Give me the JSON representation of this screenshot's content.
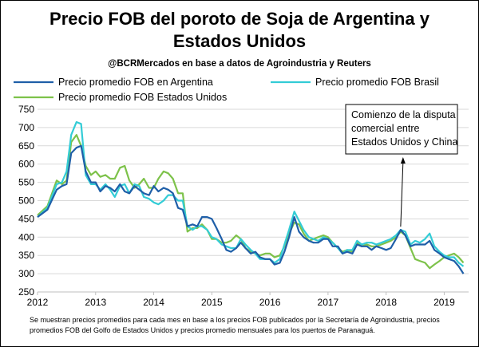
{
  "header": {
    "title_line1": "Precio FOB del poroto de Soja de Argentina y",
    "title_line2": "Estados Unidos",
    "subtitle": "@BCRMercados en base a datos de Agroindustria y Reuters"
  },
  "annotation": {
    "lines": [
      "Comienzo de la disputa",
      "comercial entre",
      "Estados Unidos y China"
    ],
    "points_to": 2018.25
  },
  "footnote": {
    "lines": [
      "Se muestran precios promedios para cada mes en base a los precios FOB publicados por la Secretaría de Agroindustria, precios",
      "promedios FOB del Golfo de Estados Unidos y precios promedio mensuales para los puertos de Paranaguá."
    ]
  },
  "chart_data": {
    "type": "line",
    "x_ticks": [
      2012,
      2013,
      2014,
      2015,
      2016,
      2017,
      2018,
      2019
    ],
    "y_ticks": [
      250,
      300,
      350,
      400,
      450,
      500,
      550,
      600,
      650,
      700,
      750
    ],
    "xlim": [
      2012,
      2019.42
    ],
    "ylim": [
      250,
      750
    ],
    "grid": "horizontal",
    "legend_position": "top",
    "series": [
      {
        "name": "Precio promedio FOB en Argentina",
        "color": "#1f5fa8",
        "points": [
          [
            2012.0,
            455
          ],
          [
            2012.17,
            475
          ],
          [
            2012.33,
            530
          ],
          [
            2012.42,
            540
          ],
          [
            2012.5,
            545
          ],
          [
            2012.58,
            630
          ],
          [
            2012.67,
            645
          ],
          [
            2012.75,
            650
          ],
          [
            2012.83,
            580
          ],
          [
            2012.92,
            550
          ],
          [
            2013.0,
            550
          ],
          [
            2013.08,
            525
          ],
          [
            2013.17,
            540
          ],
          [
            2013.25,
            535
          ],
          [
            2013.33,
            525
          ],
          [
            2013.42,
            545
          ],
          [
            2013.5,
            525
          ],
          [
            2013.58,
            520
          ],
          [
            2013.67,
            540
          ],
          [
            2013.75,
            530
          ],
          [
            2013.83,
            520
          ],
          [
            2013.92,
            515
          ],
          [
            2014.0,
            540
          ],
          [
            2014.08,
            525
          ],
          [
            2014.17,
            535
          ],
          [
            2014.25,
            530
          ],
          [
            2014.33,
            520
          ],
          [
            2014.42,
            480
          ],
          [
            2014.5,
            475
          ],
          [
            2014.58,
            430
          ],
          [
            2014.67,
            435
          ],
          [
            2014.75,
            430
          ],
          [
            2014.83,
            455
          ],
          [
            2014.92,
            455
          ],
          [
            2015.0,
            450
          ],
          [
            2015.08,
            425
          ],
          [
            2015.17,
            395
          ],
          [
            2015.25,
            365
          ],
          [
            2015.33,
            360
          ],
          [
            2015.42,
            370
          ],
          [
            2015.5,
            385
          ],
          [
            2015.58,
            370
          ],
          [
            2015.67,
            355
          ],
          [
            2015.75,
            360
          ],
          [
            2015.83,
            345
          ],
          [
            2015.92,
            340
          ],
          [
            2016.0,
            340
          ],
          [
            2016.08,
            325
          ],
          [
            2016.17,
            330
          ],
          [
            2016.25,
            360
          ],
          [
            2016.33,
            400
          ],
          [
            2016.42,
            455
          ],
          [
            2016.5,
            415
          ],
          [
            2016.58,
            400
          ],
          [
            2016.67,
            390
          ],
          [
            2016.75,
            385
          ],
          [
            2016.83,
            385
          ],
          [
            2016.92,
            395
          ],
          [
            2017.0,
            395
          ],
          [
            2017.08,
            375
          ],
          [
            2017.17,
            375
          ],
          [
            2017.25,
            355
          ],
          [
            2017.33,
            360
          ],
          [
            2017.42,
            355
          ],
          [
            2017.5,
            380
          ],
          [
            2017.58,
            375
          ],
          [
            2017.67,
            375
          ],
          [
            2017.75,
            365
          ],
          [
            2017.83,
            375
          ],
          [
            2017.92,
            370
          ],
          [
            2018.0,
            365
          ],
          [
            2018.08,
            370
          ],
          [
            2018.17,
            395
          ],
          [
            2018.25,
            420
          ],
          [
            2018.33,
            405
          ],
          [
            2018.42,
            375
          ],
          [
            2018.5,
            380
          ],
          [
            2018.58,
            380
          ],
          [
            2018.67,
            380
          ],
          [
            2018.75,
            390
          ],
          [
            2018.83,
            365
          ],
          [
            2018.92,
            355
          ],
          [
            2019.0,
            345
          ],
          [
            2019.08,
            340
          ],
          [
            2019.17,
            335
          ],
          [
            2019.25,
            320
          ],
          [
            2019.33,
            300
          ]
        ]
      },
      {
        "name": "Precio promedio FOB Brasil",
        "color": "#33ccd6",
        "points": [
          [
            2012.0,
            455
          ],
          [
            2012.17,
            480
          ],
          [
            2012.33,
            545
          ],
          [
            2012.42,
            550
          ],
          [
            2012.5,
            580
          ],
          [
            2012.58,
            680
          ],
          [
            2012.67,
            715
          ],
          [
            2012.75,
            710
          ],
          [
            2012.83,
            570
          ],
          [
            2012.92,
            545
          ],
          [
            2013.0,
            545
          ],
          [
            2013.08,
            530
          ],
          [
            2013.17,
            545
          ],
          [
            2013.25,
            530
          ],
          [
            2013.33,
            510
          ],
          [
            2013.42,
            540
          ],
          [
            2013.5,
            545
          ],
          [
            2013.58,
            520
          ],
          [
            2013.67,
            545
          ],
          [
            2013.75,
            540
          ],
          [
            2013.83,
            510
          ],
          [
            2013.92,
            505
          ],
          [
            2014.0,
            495
          ],
          [
            2014.08,
            490
          ],
          [
            2014.17,
            500
          ],
          [
            2014.25,
            515
          ],
          [
            2014.33,
            515
          ],
          [
            2014.42,
            500
          ],
          [
            2014.5,
            500
          ],
          [
            2014.58,
            430
          ],
          [
            2014.67,
            420
          ],
          [
            2014.75,
            430
          ],
          [
            2014.83,
            430
          ],
          [
            2014.92,
            420
          ],
          [
            2015.0,
            400
          ],
          [
            2015.08,
            395
          ],
          [
            2015.17,
            380
          ],
          [
            2015.25,
            375
          ],
          [
            2015.33,
            370
          ],
          [
            2015.42,
            370
          ],
          [
            2015.5,
            395
          ],
          [
            2015.58,
            380
          ],
          [
            2015.67,
            365
          ],
          [
            2015.75,
            355
          ],
          [
            2015.83,
            340
          ],
          [
            2015.92,
            340
          ],
          [
            2016.0,
            340
          ],
          [
            2016.08,
            330
          ],
          [
            2016.17,
            340
          ],
          [
            2016.25,
            380
          ],
          [
            2016.33,
            420
          ],
          [
            2016.42,
            470
          ],
          [
            2016.5,
            445
          ],
          [
            2016.58,
            420
          ],
          [
            2016.67,
            400
          ],
          [
            2016.75,
            395
          ],
          [
            2016.83,
            390
          ],
          [
            2016.92,
            400
          ],
          [
            2017.0,
            395
          ],
          [
            2017.08,
            385
          ],
          [
            2017.17,
            370
          ],
          [
            2017.25,
            355
          ],
          [
            2017.33,
            365
          ],
          [
            2017.42,
            365
          ],
          [
            2017.5,
            390
          ],
          [
            2017.58,
            380
          ],
          [
            2017.67,
            385
          ],
          [
            2017.75,
            385
          ],
          [
            2017.83,
            380
          ],
          [
            2017.92,
            385
          ],
          [
            2018.0,
            390
          ],
          [
            2018.08,
            395
          ],
          [
            2018.17,
            405
          ],
          [
            2018.25,
            420
          ],
          [
            2018.33,
            415
          ],
          [
            2018.42,
            380
          ],
          [
            2018.5,
            390
          ],
          [
            2018.58,
            385
          ],
          [
            2018.67,
            395
          ],
          [
            2018.75,
            410
          ],
          [
            2018.83,
            375
          ],
          [
            2018.92,
            360
          ],
          [
            2019.0,
            350
          ],
          [
            2019.08,
            345
          ],
          [
            2019.17,
            345
          ],
          [
            2019.25,
            330
          ],
          [
            2019.33,
            320
          ]
        ]
      },
      {
        "name": "Precio promedio FOB Estados Unidos",
        "color": "#7dc24a",
        "points": [
          [
            2012.0,
            460
          ],
          [
            2012.17,
            485
          ],
          [
            2012.33,
            555
          ],
          [
            2012.42,
            545
          ],
          [
            2012.5,
            555
          ],
          [
            2012.58,
            660
          ],
          [
            2012.67,
            680
          ],
          [
            2012.75,
            650
          ],
          [
            2012.83,
            595
          ],
          [
            2012.92,
            570
          ],
          [
            2013.0,
            580
          ],
          [
            2013.08,
            565
          ],
          [
            2013.17,
            570
          ],
          [
            2013.25,
            560
          ],
          [
            2013.33,
            560
          ],
          [
            2013.42,
            590
          ],
          [
            2013.5,
            595
          ],
          [
            2013.58,
            555
          ],
          [
            2013.67,
            535
          ],
          [
            2013.75,
            545
          ],
          [
            2013.83,
            560
          ],
          [
            2013.92,
            535
          ],
          [
            2014.0,
            535
          ],
          [
            2014.08,
            560
          ],
          [
            2014.17,
            580
          ],
          [
            2014.25,
            575
          ],
          [
            2014.33,
            560
          ],
          [
            2014.42,
            520
          ],
          [
            2014.5,
            520
          ],
          [
            2014.58,
            415
          ],
          [
            2014.67,
            425
          ],
          [
            2014.75,
            425
          ],
          [
            2014.83,
            435
          ],
          [
            2014.92,
            420
          ],
          [
            2015.0,
            395
          ],
          [
            2015.08,
            395
          ],
          [
            2015.17,
            385
          ],
          [
            2015.25,
            385
          ],
          [
            2015.33,
            390
          ],
          [
            2015.42,
            405
          ],
          [
            2015.5,
            395
          ],
          [
            2015.58,
            370
          ],
          [
            2015.67,
            360
          ],
          [
            2015.75,
            355
          ],
          [
            2015.83,
            350
          ],
          [
            2015.92,
            355
          ],
          [
            2016.0,
            355
          ],
          [
            2016.08,
            345
          ],
          [
            2016.17,
            350
          ],
          [
            2016.25,
            375
          ],
          [
            2016.33,
            410
          ],
          [
            2016.42,
            440
          ],
          [
            2016.5,
            435
          ],
          [
            2016.58,
            410
          ],
          [
            2016.67,
            390
          ],
          [
            2016.75,
            395
          ],
          [
            2016.83,
            400
          ],
          [
            2016.92,
            405
          ],
          [
            2017.0,
            400
          ],
          [
            2017.08,
            385
          ],
          [
            2017.17,
            370
          ],
          [
            2017.25,
            360
          ],
          [
            2017.33,
            365
          ],
          [
            2017.42,
            360
          ],
          [
            2017.5,
            385
          ],
          [
            2017.58,
            375
          ],
          [
            2017.67,
            380
          ],
          [
            2017.75,
            375
          ],
          [
            2017.83,
            375
          ],
          [
            2017.92,
            380
          ],
          [
            2018.0,
            385
          ],
          [
            2018.08,
            390
          ],
          [
            2018.17,
            400
          ],
          [
            2018.25,
            415
          ],
          [
            2018.33,
            405
          ],
          [
            2018.42,
            370
          ],
          [
            2018.5,
            340
          ],
          [
            2018.58,
            335
          ],
          [
            2018.67,
            330
          ],
          [
            2018.75,
            315
          ],
          [
            2018.83,
            325
          ],
          [
            2018.92,
            335
          ],
          [
            2019.0,
            345
          ],
          [
            2019.08,
            350
          ],
          [
            2019.17,
            355
          ],
          [
            2019.25,
            345
          ],
          [
            2019.33,
            330
          ]
        ]
      }
    ]
  }
}
